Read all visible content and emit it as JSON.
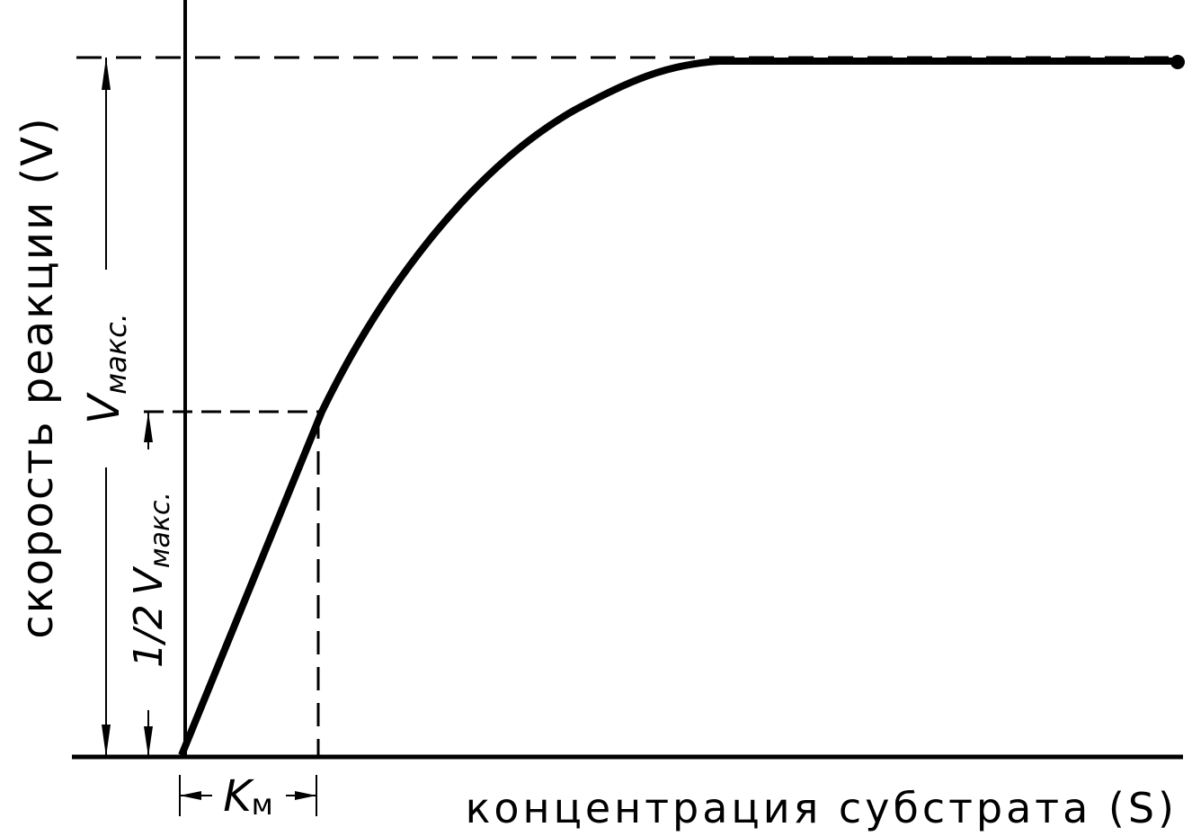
{
  "axes": {
    "y_label": "скорость реакции (V)",
    "x_label": "концентрация субстрата (S)"
  },
  "annotations": {
    "vmax": {
      "symbol": "V",
      "subscript": "макс."
    },
    "half_vmax": {
      "fraction": "1/2",
      "symbol": "V",
      "subscript": "макс."
    },
    "km": {
      "symbol": "K",
      "subscript": "м"
    }
  }
}
